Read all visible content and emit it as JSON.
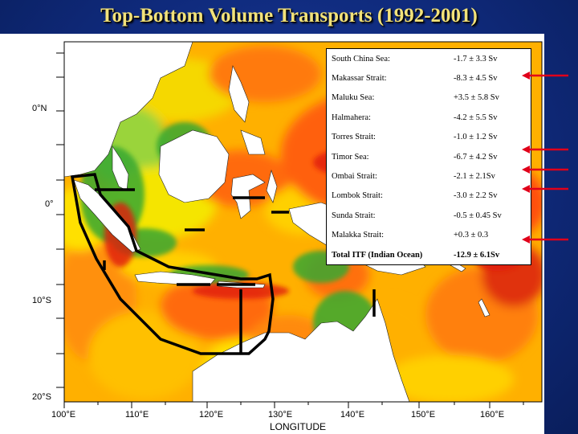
{
  "title": "Top-Bottom Volume Transports (1992-2001)",
  "axes": {
    "x_title": "LONGITUDE",
    "x_ticks": [
      "100°E",
      "110°E",
      "120°E",
      "130°E",
      "140°E",
      "150°E",
      "160°E"
    ],
    "y_ticks": [
      "0°N",
      "0°",
      "10°S",
      "20°S"
    ]
  },
  "transports": [
    {
      "name": "South China Sea:",
      "value": "-1.7 ±  3.3 Sv",
      "arrow": false
    },
    {
      "name": "Makassar Strait:",
      "value": "-8.3 ± 4.5 Sv",
      "arrow": true
    },
    {
      "name": "Maluku Sea:",
      "value": "+3.5 ± 5.8 Sv",
      "arrow": false
    },
    {
      "name": "Halmahera:",
      "value": "-4.2 ± 5.5 Sv",
      "arrow": false
    },
    {
      "name": "Torres Strait:",
      "value": "-1.0 ± 1.2 Sv",
      "arrow": false
    },
    {
      "name": "Timor Sea:",
      "value": "-6.7 ± 4.2 Sv",
      "arrow": true
    },
    {
      "name": "Ombai Strait:",
      "value": "-2.1 ± 2.1Sv",
      "arrow": true
    },
    {
      "name": "Lombok Strait:",
      "value": "-3.0 ± 2.2 Sv",
      "arrow": true
    },
    {
      "name": "Sunda Strait:",
      "value": "-0.5 ± 0.45 Sv",
      "arrow": false
    },
    {
      "name": "Malakka Strait:",
      "value": "+0.3 ± 0.3",
      "arrow": false
    },
    {
      "name": "Total ITF (Indian Ocean)",
      "value": "-12.9 ± 6.1Sv",
      "arrow": true,
      "total": true
    }
  ],
  "colors": {
    "title": "#f2e27a",
    "background": "#12307f",
    "arrow": "#e0001a",
    "ocean_low": "#2ca02c",
    "ocean_mid": "#f5e500",
    "ocean_high": "#ff6a10",
    "ocean_max": "#e02010"
  }
}
